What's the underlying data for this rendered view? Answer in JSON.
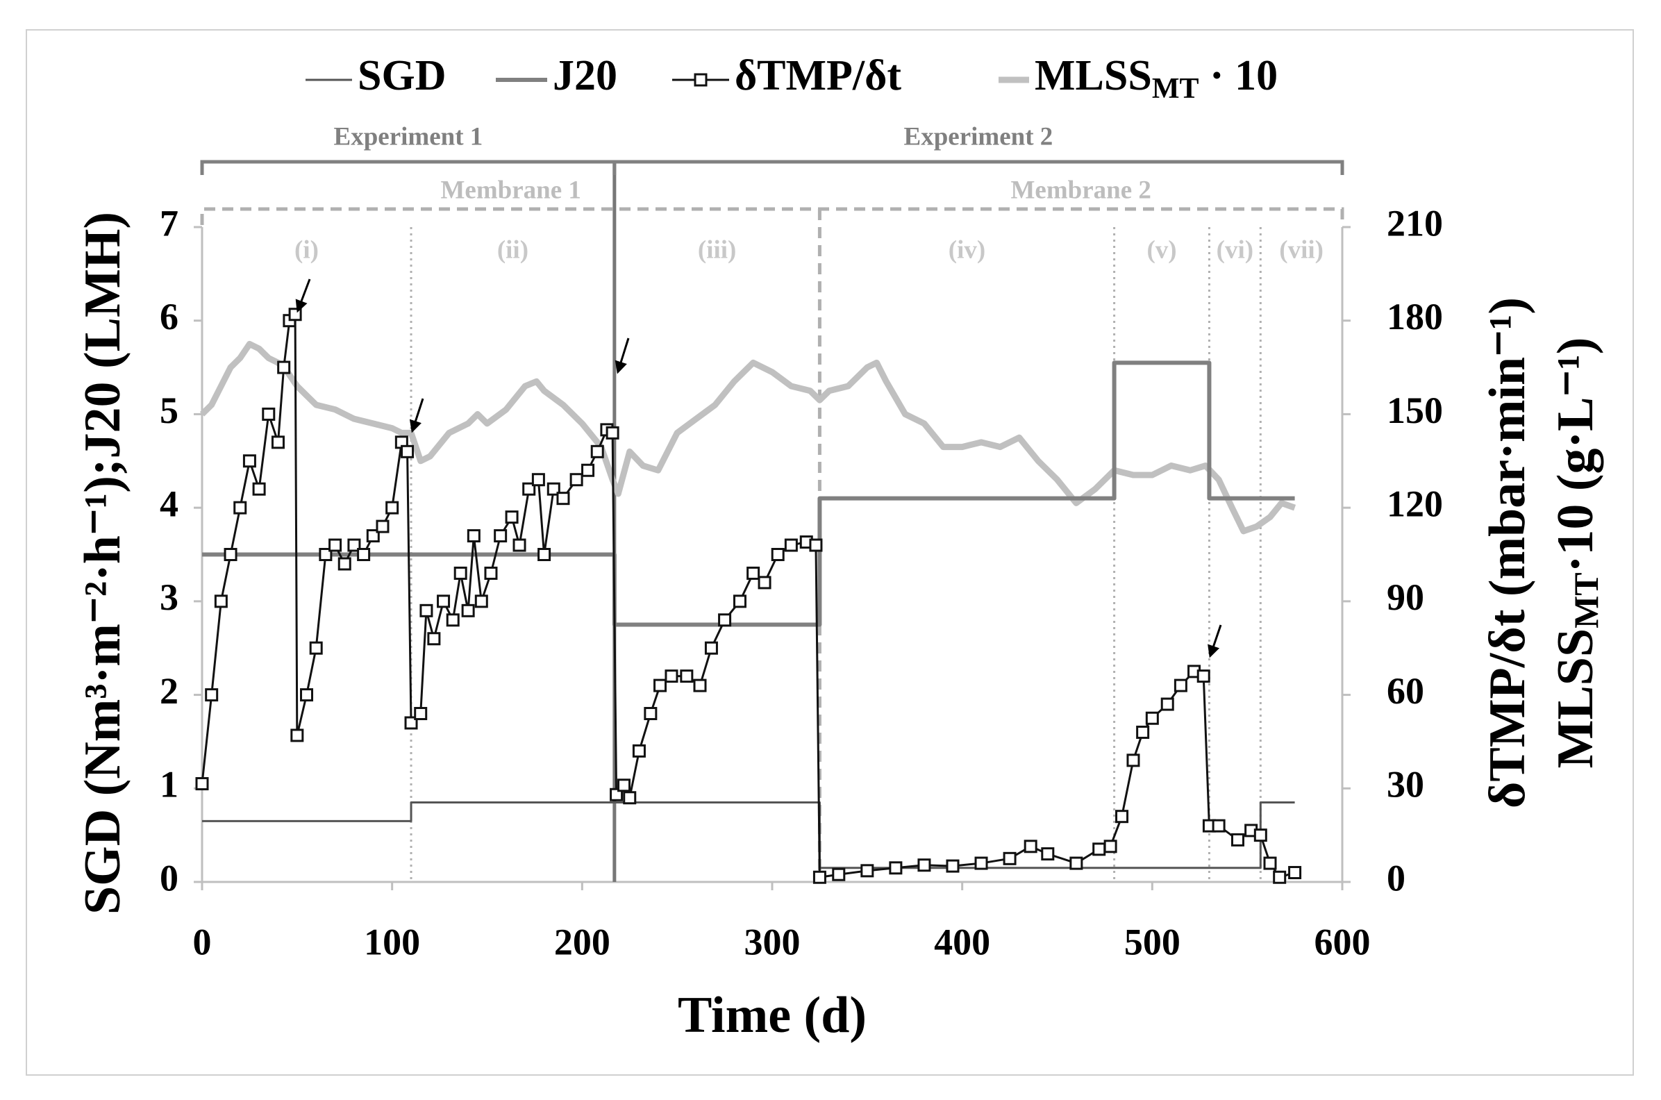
{
  "chart_data": {
    "type": "line",
    "xlabel": "Time (d)",
    "ylabel": "SGD (Nm³·m⁻²·h⁻¹);J20 (LMH)",
    "y2label": [
      "δTMP/δt (mbar·min⁻¹)",
      "MLSS",
      "MT",
      "·10 (g·L⁻¹)"
    ],
    "xlim": [
      0,
      600
    ],
    "xticks": [
      0,
      100,
      200,
      300,
      400,
      500,
      600
    ],
    "ylim": [
      0,
      7
    ],
    "yticks": [
      0,
      1,
      2,
      3,
      4,
      5,
      6,
      7
    ],
    "y2lim": [
      0,
      210
    ],
    "y2ticks": [
      0,
      30,
      60,
      90,
      120,
      150,
      180,
      210
    ],
    "grid": false,
    "experiments": [
      "Experiment 1",
      "Experiment 2"
    ],
    "membranes": [
      "Membrane 1",
      "Membrane 2"
    ],
    "phases": [
      "(i)",
      "(ii)",
      "(iii)",
      "(iv)",
      "(v)",
      "(vi)",
      "(vii)"
    ],
    "phase_boundaries": [
      110,
      217,
      325,
      480,
      530,
      557
    ],
    "series": [
      {
        "name": "SGD",
        "color": "#555555",
        "width": 3,
        "x": [
          0,
          110,
          110,
          325,
          325,
          557,
          557,
          575
        ],
        "values": [
          0.65,
          0.65,
          0.85,
          0.85,
          0.15,
          0.15,
          0.85,
          0.85
        ]
      },
      {
        "name": "J20",
        "color": "#808080",
        "width": 6,
        "x": [
          0,
          217,
          217,
          325,
          325,
          480,
          480,
          530,
          530,
          575
        ],
        "values": [
          3.5,
          3.5,
          2.75,
          2.75,
          4.1,
          4.1,
          5.55,
          5.55,
          4.1,
          4.1
        ]
      },
      {
        "name": "δTMP/δt",
        "color": "#111111",
        "width": 3,
        "axis": "y2",
        "marker": "square",
        "x": [
          0,
          5,
          10,
          15,
          20,
          25,
          30,
          35,
          40,
          43,
          46,
          49,
          50,
          55,
          60,
          65,
          70,
          75,
          80,
          85,
          90,
          95,
          100,
          105,
          108,
          110,
          115,
          118,
          122,
          127,
          132,
          136,
          140,
          143,
          147,
          152,
          157,
          163,
          167,
          172,
          177,
          180,
          185,
          190,
          197,
          203,
          208,
          213,
          216,
          218,
          222,
          225,
          230,
          236,
          241,
          247,
          255,
          262,
          268,
          275,
          283,
          290,
          296,
          303,
          310,
          318,
          323,
          325,
          335,
          350,
          365,
          380,
          395,
          410,
          425,
          436,
          445,
          460,
          472,
          478,
          484,
          490,
          495,
          500,
          508,
          515,
          522,
          527,
          530,
          535,
          545,
          552,
          557,
          562,
          567,
          575
        ],
        "values": [
          31.5,
          60,
          90,
          105,
          120,
          135,
          126,
          150,
          141,
          165,
          180,
          182,
          47,
          60,
          75,
          105,
          108,
          102,
          108,
          105,
          111,
          114,
          120,
          141,
          138,
          51,
          54,
          87,
          78,
          90,
          84,
          99,
          87,
          111,
          90,
          99,
          111,
          117,
          108,
          126,
          129,
          105,
          126,
          123,
          129,
          132,
          138,
          145,
          144,
          28,
          31,
          27,
          42,
          54,
          63,
          66,
          66,
          63,
          75,
          84,
          90,
          99,
          96,
          105,
          108,
          109,
          108,
          1.5,
          2.4,
          3.6,
          4.5,
          5.4,
          5.1,
          6,
          7.5,
          11.4,
          9,
          6,
          10.5,
          11.4,
          21,
          39,
          48,
          52.5,
          57,
          63,
          67.5,
          66,
          18,
          18,
          13.5,
          16.5,
          15,
          6,
          1.5,
          3
        ]
      },
      {
        "name": "MLSS",
        "name_sub": "MT",
        "name_suffix": " · 10",
        "color": "#c0c0c0",
        "width": 9,
        "axis": "y2",
        "x": [
          0,
          5,
          10,
          15,
          20,
          25,
          30,
          35,
          40,
          45,
          50,
          55,
          60,
          70,
          80,
          90,
          100,
          105,
          110,
          115,
          120,
          130,
          140,
          145,
          150,
          160,
          170,
          176,
          180,
          190,
          200,
          210,
          216,
          219,
          225,
          232,
          240,
          250,
          260,
          270,
          280,
          290,
          300,
          310,
          320,
          325,
          330,
          340,
          350,
          355,
          360,
          370,
          380,
          390,
          400,
          410,
          420,
          430,
          440,
          450,
          460,
          470,
          480,
          490,
          500,
          510,
          520,
          528,
          535,
          542,
          548,
          555,
          562,
          568,
          575
        ],
        "values": [
          150,
          153,
          159,
          165,
          168,
          172.5,
          171,
          168,
          166.5,
          163.5,
          159,
          156,
          153,
          151.5,
          148.5,
          147,
          145.5,
          144,
          144,
          135,
          136.5,
          144,
          147,
          150,
          147,
          151.5,
          159,
          160.5,
          157.5,
          153,
          147,
          139.5,
          129,
          124.5,
          138,
          133.5,
          132,
          144,
          148.5,
          153,
          160.5,
          166.5,
          163.5,
          159,
          157.5,
          154.5,
          157.5,
          159,
          165,
          166.5,
          160.5,
          150,
          147,
          139.5,
          139.5,
          141,
          139.5,
          142.5,
          135,
          129,
          121.5,
          126,
          132,
          130.5,
          130.5,
          133.5,
          132,
          133.5,
          129,
          120,
          112.5,
          114,
          117,
          121.5,
          120
        ]
      }
    ]
  }
}
